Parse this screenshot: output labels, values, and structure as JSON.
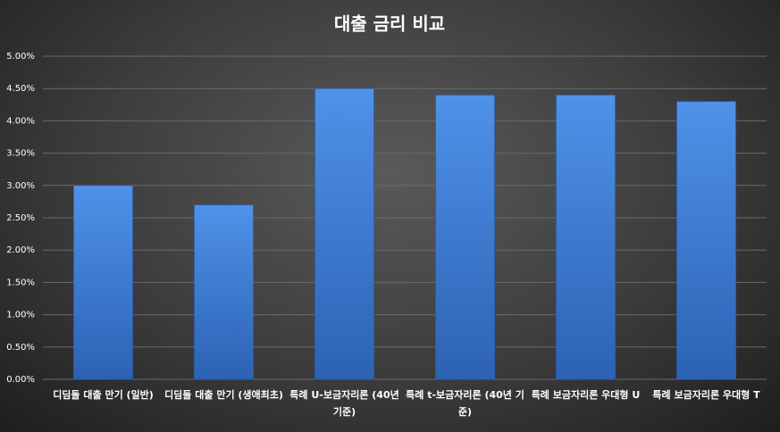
{
  "chart_data": {
    "type": "bar",
    "title": "대출 금리 비교",
    "categories": [
      "디딤돌 대출 만기 (일반)",
      "디딤돌 대출 만기 (생애최초)",
      "특례 U-보금자리론 (40년 기준)",
      "특례 t-보금자리론 (40년 기준)",
      "특례 보금자리론 우대형 U",
      "특례 보금자리론 우대형 T"
    ],
    "values": [
      3.0,
      2.7,
      4.5,
      4.4,
      4.4,
      4.3
    ],
    "color": "#3f7fd6",
    "ylim": [
      0,
      5
    ],
    "yticks": [
      {
        "value": 0,
        "label": "0.00%"
      },
      {
        "value": 0.5,
        "label": "0.50%"
      },
      {
        "value": 1,
        "label": "1.00%"
      },
      {
        "value": 1.5,
        "label": "1.50%"
      },
      {
        "value": 2,
        "label": "2.00%"
      },
      {
        "value": 2.5,
        "label": "2.50%"
      },
      {
        "value": 3,
        "label": "3.00%"
      },
      {
        "value": 3.5,
        "label": "3.50%"
      },
      {
        "value": 4,
        "label": "4.00%"
      },
      {
        "value": 4.5,
        "label": "4.50%"
      },
      {
        "value": 5,
        "label": "5.00%"
      }
    ],
    "grid": true
  }
}
